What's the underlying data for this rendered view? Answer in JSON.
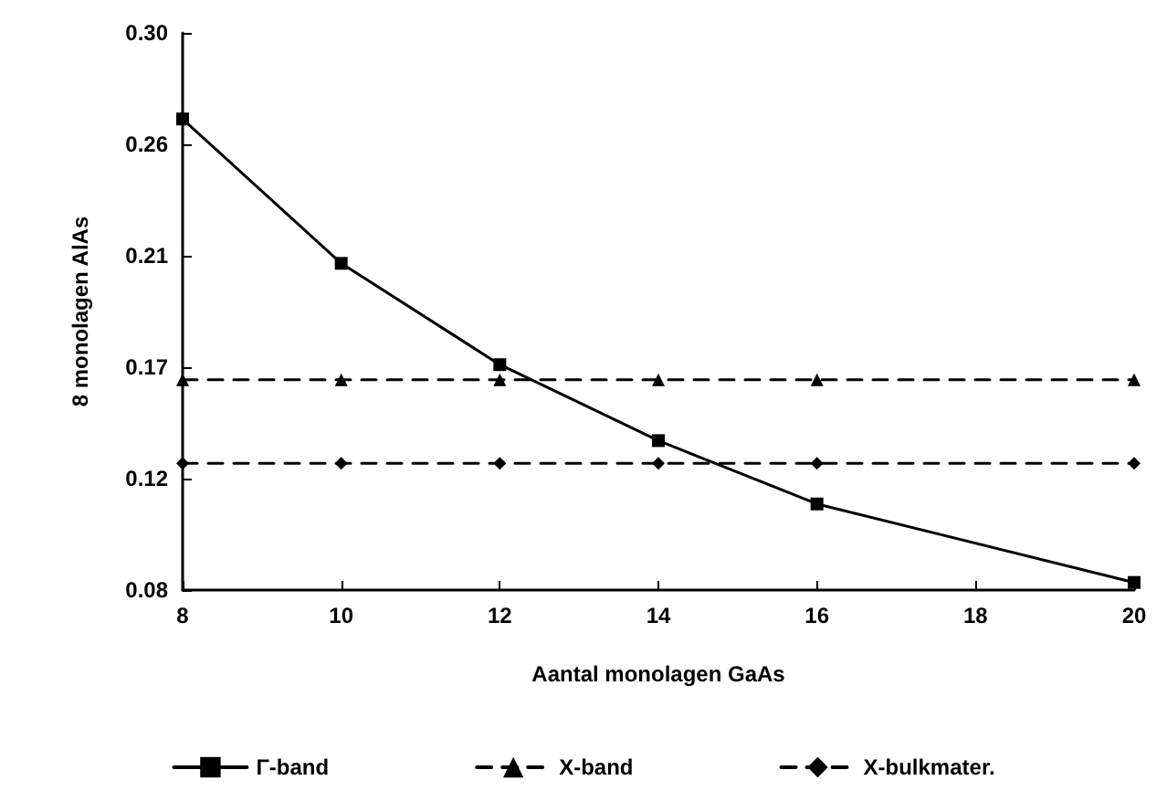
{
  "chart_data": {
    "type": "line",
    "xlabel": "Aantal monolagen GaAs",
    "ylabel": "8 monolagen AlAs",
    "x": [
      8,
      10,
      12,
      14,
      16,
      20
    ],
    "series": [
      {
        "name": "Γ-band",
        "color": "#000000",
        "marker": "square",
        "line_style": "solid",
        "values": [
          0.266,
          0.209,
          0.169,
          0.139,
          0.114,
          0.083
        ]
      },
      {
        "name": "X-band",
        "color": "#000000",
        "marker": "triangle",
        "line_style": "dashed",
        "values": [
          0.163,
          0.163,
          0.163,
          0.163,
          0.163,
          0.163
        ]
      },
      {
        "name": "X-bulkmater.",
        "color": "#000000",
        "marker": "diamond",
        "line_style": "dashed",
        "values": [
          0.13,
          0.13,
          0.13,
          0.13,
          0.13,
          0.13
        ]
      }
    ],
    "xlim": [
      8,
      20
    ],
    "xticks": [
      8,
      10,
      12,
      14,
      16,
      18,
      20
    ],
    "ylim": [
      0.08,
      0.3
    ],
    "yticks": [
      {
        "value": 0.08,
        "label": "0.08"
      },
      {
        "value": 0.124,
        "label": "0.12"
      },
      {
        "value": 0.168,
        "label": "0.17"
      },
      {
        "value": 0.212,
        "label": "0.21"
      },
      {
        "value": 0.256,
        "label": "0.26"
      },
      {
        "value": 0.3,
        "label": "0.30"
      }
    ],
    "grid": false,
    "legend": "bottom"
  }
}
